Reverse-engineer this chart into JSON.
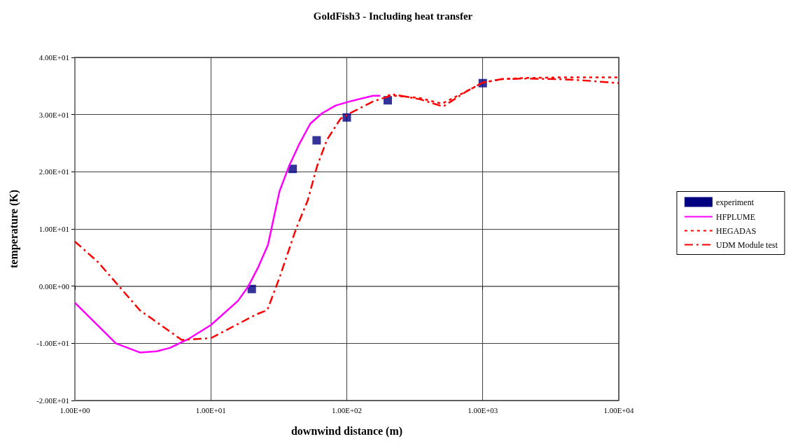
{
  "chart_data": {
    "type": "line",
    "title": "GoldFish3 - Including heat transfer",
    "xlabel": "downwind distance (m)",
    "ylabel": "temperature (K)",
    "log": "x",
    "grid": true,
    "legend": "right",
    "xlim": [
      1,
      10000
    ],
    "xticks": [
      {
        "value": 1,
        "label": "1.00E+00"
      },
      {
        "value": 10,
        "label": "1.00E+01"
      },
      {
        "value": 100,
        "label": "1.00E+02"
      },
      {
        "value": 1000,
        "label": "1.00E+03"
      },
      {
        "value": 10000,
        "label": "1.00E+04"
      }
    ],
    "ylim": [
      -20,
      40
    ],
    "yticks": [
      {
        "value": -20,
        "label": "-2.00E+01"
      },
      {
        "value": -10,
        "label": "-1.00E+01"
      },
      {
        "value": 0,
        "label": "0.00E+00"
      },
      {
        "value": 10,
        "label": "1.00E+01"
      },
      {
        "value": 20,
        "label": "2.00E+01"
      },
      {
        "value": 30,
        "label": "3.00E+01"
      },
      {
        "value": 40,
        "label": "4.00E+01"
      }
    ],
    "series": [
      {
        "name": "experiment",
        "type": "scatter",
        "marker": "square",
        "color": "#000080",
        "x": [
          20,
          40,
          60,
          100,
          200,
          1000
        ],
        "values": [
          -0.5,
          20.5,
          25.5,
          29.5,
          32.5,
          35.5
        ]
      },
      {
        "name": "HFPLUME",
        "type": "line",
        "marker": "none",
        "line_style": "solid",
        "color": "#ff00ff",
        "x": [
          1,
          2,
          3,
          4,
          5,
          6.9,
          10,
          15.8,
          18.9,
          22.5,
          26.3,
          32,
          37.6,
          44.4,
          53.8,
          65.5,
          83,
          105,
          156,
          176
        ],
        "values": [
          -2.9,
          -10,
          -11.6,
          -11.4,
          -10.8,
          -9.2,
          -6.8,
          -2.6,
          0,
          3.5,
          7.2,
          16.6,
          21,
          24.7,
          28.4,
          30.2,
          31.6,
          32.3,
          33.3,
          33.3
        ]
      },
      {
        "name": "HEGADAS",
        "type": "line",
        "marker": "none",
        "line_style": "dotted",
        "color": "#ff0000",
        "x": [
          200,
          343,
          500,
          764,
          1000,
          1377,
          2030,
          3660,
          10000
        ],
        "values": [
          33.4,
          32.9,
          31.9,
          34.1,
          35.6,
          36.2,
          36.4,
          36.5,
          36.5
        ]
      },
      {
        "name": "UDM Module test",
        "type": "line",
        "marker": "none",
        "line_style": "dashed",
        "color": "#ff0000",
        "x": [
          1,
          1.48,
          3,
          6.1,
          10,
          21.8,
          26,
          32,
          42.3,
          51.6,
          60.5,
          71.5,
          90,
          105,
          156,
          223,
          343,
          510,
          764,
          1000,
          1377,
          2030,
          3660,
          5400,
          10000
        ],
        "values": [
          7.8,
          4.2,
          -4.2,
          -9.4,
          -9.1,
          -4.9,
          -4.2,
          1.5,
          10,
          15,
          21,
          25.6,
          29.3,
          30.2,
          32.3,
          33.5,
          32.7,
          31.4,
          34.1,
          35.6,
          36.2,
          36.3,
          36.2,
          36,
          35.5
        ]
      }
    ]
  }
}
